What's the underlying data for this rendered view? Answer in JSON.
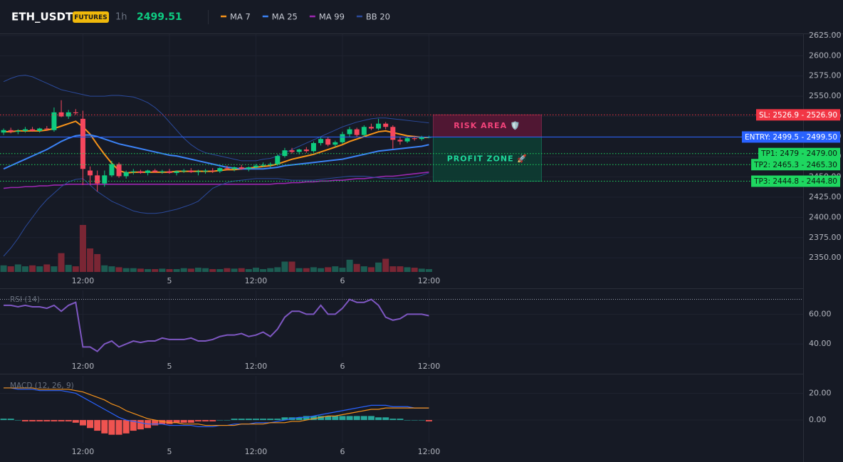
{
  "chart_data": [
    {
      "type": "candlestick",
      "title": "ETH_USDT",
      "badge": "FUTURES",
      "interval": "1h",
      "last_price": 2499.51,
      "categories": [
        null,
        null,
        null,
        null,
        null,
        null,
        null,
        null,
        null,
        null,
        null,
        "12:00",
        null,
        null,
        null,
        null,
        null,
        null,
        null,
        null,
        null,
        null,
        null,
        "5",
        null,
        null,
        null,
        null,
        null,
        null,
        null,
        null,
        null,
        null,
        null,
        "12:00",
        null,
        null,
        null,
        null,
        null,
        null,
        null,
        null,
        null,
        null,
        null,
        "6",
        null,
        null,
        null,
        null,
        null,
        null,
        null,
        null,
        null,
        null,
        null,
        "12:00"
      ],
      "open": [
        2505,
        2508,
        2506,
        2507,
        2509,
        2507,
        2510,
        2508,
        2530,
        2525,
        2530,
        2522,
        2458,
        2452,
        2442,
        2452,
        2466,
        2451,
        2456,
        2457,
        2455,
        2458,
        2456,
        2457,
        2455,
        2457,
        2458,
        2456,
        2457,
        2458,
        2457,
        2461,
        2460,
        2462,
        2460,
        2462,
        2464,
        2465,
        2466,
        2476,
        2483,
        2481,
        2484,
        2482,
        2492,
        2497,
        2490,
        2493,
        2503,
        2509,
        2502,
        2512,
        2510,
        2516,
        2512,
        2496,
        2494,
        2498,
        2497,
        2499
      ],
      "high": [
        2510,
        2511,
        2509,
        2512,
        2512,
        2511,
        2513,
        2536,
        2545,
        2533,
        2534,
        2532,
        2463,
        2458,
        2458,
        2470,
        2468,
        2458,
        2460,
        2459,
        2459,
        2460,
        2459,
        2460,
        2458,
        2460,
        2461,
        2459,
        2460,
        2461,
        2462,
        2464,
        2463,
        2465,
        2463,
        2466,
        2468,
        2468,
        2478,
        2486,
        2486,
        2485,
        2487,
        2494,
        2500,
        2499,
        2495,
        2506,
        2512,
        2511,
        2514,
        2516,
        2522,
        2518,
        2514,
        2499,
        2500,
        2501,
        2501,
        2501
      ],
      "low": [
        2502,
        2504,
        2503,
        2505,
        2506,
        2505,
        2507,
        2506,
        2524,
        2522,
        2527,
        2440,
        2440,
        2432,
        2438,
        2450,
        2449,
        2448,
        2453,
        2454,
        2452,
        2455,
        2454,
        2454,
        2452,
        2455,
        2455,
        2452,
        2454,
        2455,
        2455,
        2458,
        2457,
        2459,
        2457,
        2460,
        2462,
        2462,
        2464,
        2474,
        2479,
        2478,
        2480,
        2480,
        2489,
        2488,
        2487,
        2491,
        2500,
        2500,
        2500,
        2508,
        2508,
        2509,
        2485,
        2490,
        2492,
        2495,
        2495,
        2498
      ],
      "close": [
        2508,
        2506,
        2507,
        2509,
        2507,
        2510,
        2509,
        2530,
        2525,
        2530,
        2529,
        2460,
        2452,
        2442,
        2452,
        2466,
        2451,
        2456,
        2457,
        2455,
        2458,
        2456,
        2457,
        2455,
        2457,
        2458,
        2456,
        2457,
        2458,
        2457,
        2461,
        2460,
        2462,
        2460,
        2462,
        2464,
        2465,
        2466,
        2476,
        2483,
        2481,
        2484,
        2482,
        2492,
        2497,
        2490,
        2493,
        2503,
        2509,
        2502,
        2512,
        2510,
        2516,
        2512,
        2496,
        2494,
        2498,
        2497,
        2499,
        2499.5
      ],
      "up_color": "#0ecb81",
      "down_color": "#f6465d",
      "series": [
        {
          "name": "MA 7",
          "color": "#f7931a",
          "values": [
            2506,
            2506,
            2507,
            2507,
            2507,
            2507,
            2508,
            2510,
            2513,
            2516,
            2519,
            2512,
            2503,
            2490,
            2478,
            2467,
            2458,
            2455,
            2456,
            2456,
            2456,
            2456,
            2456,
            2456,
            2457,
            2457,
            2457,
            2457,
            2457,
            2457,
            2458,
            2459,
            2459,
            2460,
            2461,
            2462,
            2463,
            2464,
            2466,
            2469,
            2472,
            2474,
            2476,
            2478,
            2481,
            2484,
            2487,
            2490,
            2494,
            2497,
            2500,
            2503,
            2506,
            2507,
            2505,
            2503,
            2501,
            2500,
            2499,
            2499
          ]
        },
        {
          "name": "MA 25",
          "color": "#3b82f6",
          "values": [
            2460,
            2464,
            2468,
            2472,
            2476,
            2480,
            2484,
            2489,
            2494,
            2498,
            2501,
            2502,
            2502,
            2500,
            2497,
            2494,
            2491,
            2489,
            2487,
            2485,
            2483,
            2481,
            2479,
            2477,
            2476,
            2474,
            2472,
            2470,
            2468,
            2466,
            2464,
            2462,
            2461,
            2460,
            2460,
            2460,
            2460,
            2461,
            2462,
            2464,
            2465,
            2466,
            2467,
            2468,
            2469,
            2470,
            2471,
            2472,
            2474,
            2476,
            2478,
            2480,
            2482,
            2483,
            2484,
            2485,
            2486,
            2487,
            2488,
            2490
          ]
        },
        {
          "name": "MA 99",
          "color": "#9c27b0",
          "values": [
            2436,
            2437,
            2437,
            2438,
            2438,
            2439,
            2439,
            2440,
            2440,
            2441,
            2441,
            2441,
            2441,
            2441,
            2441,
            2441,
            2441,
            2441,
            2441,
            2441,
            2441,
            2441,
            2441,
            2441,
            2441,
            2441,
            2441,
            2441,
            2441,
            2441,
            2441,
            2441,
            2441,
            2441,
            2441,
            2441,
            2441,
            2441,
            2442,
            2442,
            2443,
            2443,
            2444,
            2444,
            2445,
            2445,
            2446,
            2446,
            2447,
            2448,
            2448,
            2449,
            2450,
            2451,
            2451,
            2452,
            2453,
            2454,
            2455,
            2456
          ]
        },
        {
          "name": "BB 20",
          "color": "#2b4a9c",
          "upper": [
            2568,
            2572,
            2575,
            2576,
            2574,
            2570,
            2566,
            2562,
            2558,
            2556,
            2554,
            2552,
            2550,
            2550,
            2550,
            2551,
            2551,
            2550,
            2549,
            2546,
            2542,
            2536,
            2528,
            2518,
            2508,
            2498,
            2490,
            2484,
            2480,
            2478,
            2476,
            2474,
            2472,
            2470,
            2470,
            2470,
            2472,
            2473,
            2476,
            2480,
            2484,
            2488,
            2492,
            2496,
            2500,
            2504,
            2508,
            2512,
            2515,
            2518,
            2520,
            2522,
            2523,
            2523,
            2522,
            2521,
            2520,
            2519,
            2518,
            2517
          ],
          "lower": [
            2352,
            2362,
            2374,
            2388,
            2400,
            2412,
            2422,
            2430,
            2438,
            2444,
            2447,
            2448,
            2440,
            2432,
            2426,
            2420,
            2416,
            2412,
            2408,
            2406,
            2405,
            2405,
            2406,
            2408,
            2410,
            2413,
            2416,
            2420,
            2428,
            2436,
            2440,
            2443,
            2445,
            2446,
            2447,
            2448,
            2448,
            2448,
            2448,
            2447,
            2446,
            2446,
            2446,
            2446,
            2447,
            2448,
            2449,
            2450,
            2451,
            2451,
            2451,
            2450,
            2449,
            2448,
            2448,
            2448,
            2449,
            2450,
            2452,
            2455
          ]
        }
      ],
      "volume": [
        14,
        12,
        16,
        12,
        14,
        12,
        16,
        12,
        40,
        15,
        12,
        100,
        50,
        38,
        14,
        12,
        10,
        8,
        8,
        7,
        6,
        6,
        7,
        6,
        6,
        8,
        7,
        9,
        8,
        6,
        6,
        8,
        7,
        8,
        6,
        9,
        6,
        8,
        10,
        22,
        22,
        8,
        8,
        10,
        8,
        10,
        12,
        9,
        26,
        17,
        12,
        10,
        20,
        28,
        12,
        12,
        10,
        9,
        7,
        6
      ],
      "volume_up_color": "#1c5c52",
      "volume_down_color": "#7a2634",
      "levels": [
        {
          "label": "SL: 2526.9 - 2526.90",
          "value": 2526.9,
          "color": "#f23645",
          "text_color": "#ffffff",
          "dashed": true
        },
        {
          "label": "ENTRY: 2499.5 - 2499.50",
          "value": 2499.5,
          "color": "#2962ff",
          "text_color": "#ffffff",
          "dashed": false
        },
        {
          "label": "TP1: 2479 - 2479.00",
          "value": 2479,
          "color": "#1ed760",
          "text_color": "#0b1a10",
          "dashed": true
        },
        {
          "label": "TP2: 2465.3 - 2465.30",
          "value": 2465.3,
          "color": "#1ed760",
          "text_color": "#0b1a10",
          "dashed": true
        },
        {
          "label": "TP3: 2444.8 - 2444.80",
          "value": 2444.8,
          "color": "#1ed760",
          "text_color": "#0b1a10",
          "dashed": true
        }
      ],
      "zones": [
        {
          "label": "RISK AREA 🛡️",
          "from": 2526.9,
          "to": 2499.5,
          "color": "#5a1836",
          "text_color": "#f2437a"
        },
        {
          "label": "PROFIT ZONE 🚀",
          "from": 2499.5,
          "to": 2444.8,
          "color": "#0d3f34",
          "text_color": "#1ed79a"
        }
      ],
      "ylim": [
        2332.5,
        2626.75
      ],
      "yticks": [
        {
          "value": 2625,
          "label": "2625.00"
        },
        {
          "value": 2600,
          "label": "2600.00"
        },
        {
          "value": 2575,
          "label": "2575.00"
        },
        {
          "value": 2550,
          "label": "2550.00"
        },
        {
          "value": 2525,
          "label": "2525.00"
        },
        {
          "value": 2500,
          "label": "2500.00"
        },
        {
          "value": 2475,
          "label": "2475.00"
        },
        {
          "value": 2450,
          "label": "2450.00"
        },
        {
          "value": 2425,
          "label": "2425.00"
        },
        {
          "value": 2400,
          "label": "2400.00"
        },
        {
          "value": 2375,
          "label": "2375.00"
        },
        {
          "value": 2350,
          "label": "2350.00"
        }
      ],
      "grid": true
    },
    {
      "type": "line",
      "title": "RSI (14)",
      "color": "#7e57c2",
      "values": [
        66,
        66,
        65,
        66,
        65,
        65,
        64,
        66,
        62,
        66,
        68,
        38,
        38,
        35,
        40,
        42,
        38,
        40,
        42,
        41,
        42,
        42,
        44,
        43,
        43,
        43,
        44,
        42,
        42,
        43,
        45,
        46,
        46,
        47,
        45,
        46,
        48,
        45,
        50,
        58,
        62,
        62,
        60,
        60,
        66,
        60,
        60,
        64,
        70,
        68,
        68,
        70,
        66,
        58,
        56,
        57,
        60,
        60,
        60,
        59
      ],
      "reference_line": 70,
      "ylim": [
        31,
        76
      ],
      "yticks": [
        {
          "value": 60,
          "label": "60.00"
        },
        {
          "value": 40,
          "label": "40.00"
        }
      ],
      "grid": true
    },
    {
      "type": "macd",
      "title": "MACD (12, 26, 9)",
      "macd": {
        "color": "#2962ff",
        "values": [
          24,
          24,
          23,
          23,
          23,
          22,
          22,
          22,
          22,
          21,
          20,
          17,
          14,
          11,
          8,
          5,
          2,
          0,
          -1,
          -2,
          -3,
          -3,
          -3,
          -4,
          -4,
          -4,
          -4,
          -5,
          -5,
          -5,
          -4,
          -4,
          -3,
          -3,
          -3,
          -2,
          -2,
          -2,
          -1,
          0,
          1,
          2,
          2,
          3,
          4,
          5,
          6,
          7,
          8,
          9,
          10,
          11,
          11,
          11,
          10,
          10,
          10,
          9,
          9,
          9
        ]
      },
      "signal": {
        "color": "#f7931a",
        "values": [
          24,
          24,
          24,
          24,
          24,
          23,
          23,
          23,
          23,
          23,
          22,
          21,
          19,
          17,
          15,
          12,
          10,
          7,
          5,
          3,
          1,
          0,
          -1,
          -2,
          -2,
          -3,
          -3,
          -3,
          -4,
          -4,
          -4,
          -4,
          -4,
          -3,
          -3,
          -3,
          -3,
          -2,
          -2,
          -2,
          -1,
          -1,
          0,
          1,
          2,
          3,
          3,
          4,
          5,
          6,
          7,
          8,
          8,
          9,
          9,
          9,
          9,
          9,
          9,
          9
        ]
      },
      "histogram": {
        "up_color": "#26a69a",
        "down_color": "#ef5350",
        "values": [
          1,
          1,
          0,
          -1,
          -1,
          -1,
          -1,
          -1,
          -1,
          -1,
          -2,
          -4,
          -6,
          -8,
          -10,
          -11,
          -11,
          -10,
          -8,
          -7,
          -6,
          -4,
          -3,
          -3,
          -2,
          -2,
          -2,
          -1,
          -1,
          -1,
          0,
          0,
          1,
          1,
          1,
          1,
          1,
          1,
          1,
          2,
          2,
          2,
          3,
          3,
          3,
          3,
          3,
          3,
          3,
          3,
          3,
          3,
          2,
          2,
          1,
          1,
          0,
          0,
          0,
          -1
        ]
      },
      "ylim": [
        -17,
        33
      ],
      "yticks": [
        {
          "value": 20,
          "label": "20.00"
        },
        {
          "value": 0,
          "label": "0.00"
        }
      ],
      "grid": true
    }
  ]
}
